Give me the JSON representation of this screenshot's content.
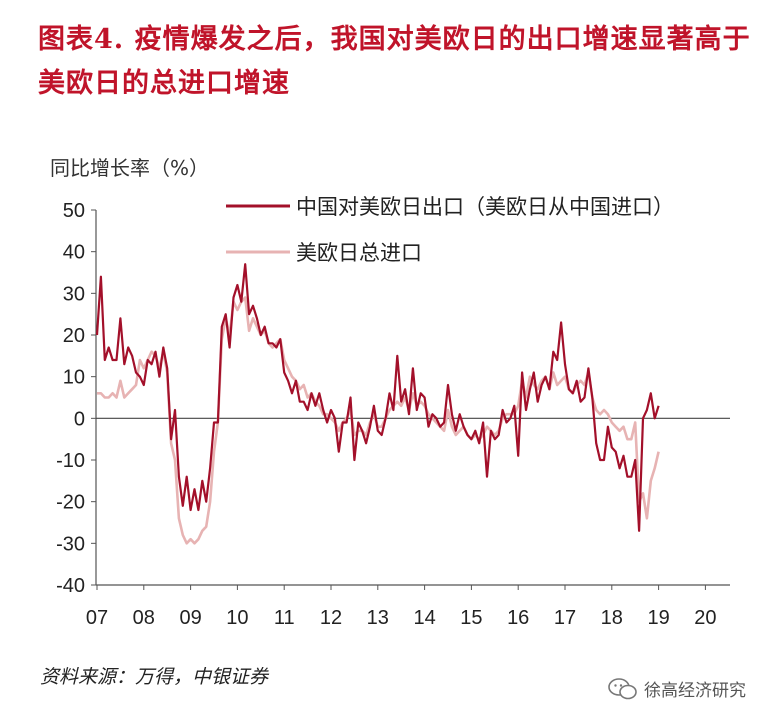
{
  "title": "图表4.  疫情爆发之后，我国对美欧日的出口增速显著高于美欧日的总进口增速",
  "source": "资料来源：万得，中银证券",
  "watermark": "徐高经济研究",
  "chart_data": {
    "type": "line",
    "ylabel": "同比增长率（%）",
    "ylim": [
      -40,
      50
    ],
    "yticks": [
      "50",
      "40",
      "30",
      "20",
      "10",
      "0",
      "-10",
      "-20",
      "-30",
      "-40"
    ],
    "xticks": [
      "07",
      "08",
      "09",
      "10",
      "11",
      "12",
      "13",
      "14",
      "15",
      "16",
      "17",
      "18",
      "19",
      "20"
    ],
    "x_start": "2007-01",
    "legend": {
      "placement": "top-right"
    },
    "colors": {
      "china_exports": "#a3102a",
      "total_imports": "#e7b3b3"
    },
    "series": [
      {
        "name": "中国对美欧日出口（美欧日从中国进口）",
        "key": "china_exports",
        "values": [
          20,
          34,
          14,
          17,
          14,
          14,
          24,
          13,
          17,
          15,
          11,
          10,
          8,
          14,
          13,
          16,
          10,
          17,
          12,
          -5,
          2,
          -14,
          -21,
          -14,
          -22,
          -17,
          -22,
          -15,
          -20,
          -12,
          -1,
          -1,
          22,
          25,
          17,
          29,
          32,
          28,
          37,
          25,
          27,
          24,
          20,
          22,
          18,
          18,
          17,
          19,
          11,
          9,
          6,
          9,
          4,
          4,
          2,
          6,
          3,
          6,
          2,
          -1,
          2,
          0,
          -8,
          -1,
          -1,
          5,
          -10,
          -1,
          -3,
          -6,
          -2,
          3,
          -3,
          -4,
          0,
          6,
          2,
          15,
          4,
          7,
          1,
          12,
          2,
          6,
          5,
          -2,
          1,
          0,
          -2,
          -1,
          8,
          1,
          -3,
          1,
          -2,
          -4,
          -5,
          -3,
          -6,
          -1,
          -14,
          -3,
          -5,
          -4,
          2,
          -1,
          0,
          3,
          -9,
          11,
          2,
          7,
          11,
          4,
          8,
          10,
          7,
          16,
          14,
          23,
          13,
          7,
          6,
          9,
          4,
          5,
          12,
          5,
          -6,
          -10,
          -10,
          -2,
          -7,
          -8,
          -12,
          -9,
          -14,
          -14,
          -10,
          -27,
          0,
          2,
          6,
          0,
          3
        ]
      },
      {
        "name": "美欧日总进口",
        "key": "total_imports",
        "values": [
          6,
          6,
          5,
          5,
          6,
          5,
          9,
          5,
          6,
          7,
          8,
          14,
          12,
          14,
          16,
          15,
          12,
          16,
          11,
          -6,
          -10,
          -24,
          -28,
          -30,
          -29,
          -30,
          -29,
          -27,
          -26,
          -20,
          -8,
          -1,
          19,
          24,
          20,
          28,
          26,
          28,
          29,
          21,
          24,
          22,
          20,
          21,
          18,
          17,
          18,
          19,
          14,
          12,
          10,
          9,
          7,
          8,
          5,
          6,
          4,
          3,
          1,
          1,
          0,
          -1,
          -3,
          -1,
          0,
          2,
          -4,
          -3,
          -3,
          -4,
          -1,
          1,
          -2,
          -2,
          0,
          2,
          3,
          4,
          3,
          5,
          2,
          6,
          3,
          4,
          3,
          1,
          0,
          -1,
          -2,
          -3,
          2,
          -2,
          -4,
          -3,
          -2,
          -4,
          -5,
          -4,
          -5,
          -4,
          -2,
          -3,
          -4,
          -3,
          0,
          1,
          1,
          1,
          3,
          9,
          5,
          10,
          8,
          7,
          9,
          10,
          7,
          11,
          8,
          9,
          10,
          7,
          6,
          8,
          9,
          8,
          11,
          5,
          2,
          1,
          2,
          1,
          -1,
          -2,
          -3,
          -2,
          -5,
          -5,
          -1,
          -20,
          -18,
          -24,
          -15,
          -12,
          -8
        ]
      }
    ]
  }
}
